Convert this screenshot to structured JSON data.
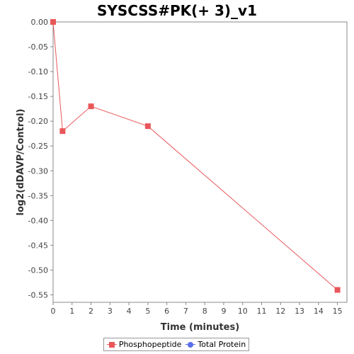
{
  "chart_data": {
    "type": "line",
    "title": "SYSCSS#PK(+ 3)_v1",
    "xlabel": "Time (minutes)",
    "ylabel": "log2(dDAVP/Control)",
    "xlim": [
      0,
      15.5
    ],
    "ylim": [
      -0.565,
      0.0
    ],
    "x_ticks": [
      0,
      1,
      2,
      3,
      4,
      5,
      6,
      7,
      8,
      9,
      10,
      11,
      12,
      13,
      14,
      15
    ],
    "y_ticks": [
      0.0,
      -0.05,
      -0.1,
      -0.15,
      -0.2,
      -0.25,
      -0.3,
      -0.35,
      -0.4,
      -0.45,
      -0.5,
      -0.55
    ],
    "y_tick_labels": [
      "0.00",
      "-0.05",
      "-0.10",
      "-0.15",
      "-0.20",
      "-0.25",
      "-0.30",
      "-0.35",
      "-0.40",
      "-0.45",
      "-0.50",
      "-0.55"
    ],
    "grid": false,
    "legend_position": "bottom",
    "series": [
      {
        "name": "Phosphopeptide",
        "color": "#e8575a",
        "marker": "square",
        "x": [
          0,
          0.5,
          2,
          5,
          15
        ],
        "y": [
          0.0,
          -0.22,
          -0.17,
          -0.21,
          -0.54
        ]
      },
      {
        "name": "Total Protein",
        "color": "#5a6ee8",
        "marker": "circle",
        "x": [],
        "y": []
      }
    ]
  }
}
